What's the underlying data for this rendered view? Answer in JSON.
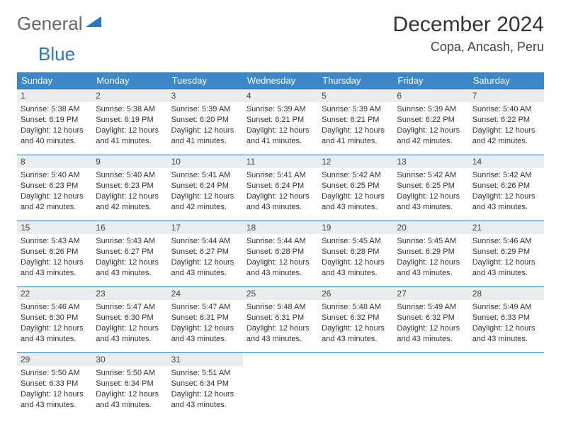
{
  "brand": {
    "general": "General",
    "blue": "Blue"
  },
  "title": "December 2024",
  "location": "Copa, Ancash, Peru",
  "colors": {
    "header_bg": "#3b87c8",
    "header_text": "#ffffff",
    "row_border": "#2b77c0",
    "daynum_bg": "#e9edf0",
    "logo_blue": "#2b77c0",
    "logo_gray": "#686868",
    "body_text": "#333333"
  },
  "weekdays": [
    "Sunday",
    "Monday",
    "Tuesday",
    "Wednesday",
    "Thursday",
    "Friday",
    "Saturday"
  ],
  "weeks": [
    [
      {
        "n": "1",
        "sr": "5:38 AM",
        "ss": "6:19 PM",
        "dl": "12 hours and 40 minutes."
      },
      {
        "n": "2",
        "sr": "5:38 AM",
        "ss": "6:19 PM",
        "dl": "12 hours and 41 minutes."
      },
      {
        "n": "3",
        "sr": "5:39 AM",
        "ss": "6:20 PM",
        "dl": "12 hours and 41 minutes."
      },
      {
        "n": "4",
        "sr": "5:39 AM",
        "ss": "6:21 PM",
        "dl": "12 hours and 41 minutes."
      },
      {
        "n": "5",
        "sr": "5:39 AM",
        "ss": "6:21 PM",
        "dl": "12 hours and 41 minutes."
      },
      {
        "n": "6",
        "sr": "5:39 AM",
        "ss": "6:22 PM",
        "dl": "12 hours and 42 minutes."
      },
      {
        "n": "7",
        "sr": "5:40 AM",
        "ss": "6:22 PM",
        "dl": "12 hours and 42 minutes."
      }
    ],
    [
      {
        "n": "8",
        "sr": "5:40 AM",
        "ss": "6:23 PM",
        "dl": "12 hours and 42 minutes."
      },
      {
        "n": "9",
        "sr": "5:40 AM",
        "ss": "6:23 PM",
        "dl": "12 hours and 42 minutes."
      },
      {
        "n": "10",
        "sr": "5:41 AM",
        "ss": "6:24 PM",
        "dl": "12 hours and 42 minutes."
      },
      {
        "n": "11",
        "sr": "5:41 AM",
        "ss": "6:24 PM",
        "dl": "12 hours and 43 minutes."
      },
      {
        "n": "12",
        "sr": "5:42 AM",
        "ss": "6:25 PM",
        "dl": "12 hours and 43 minutes."
      },
      {
        "n": "13",
        "sr": "5:42 AM",
        "ss": "6:25 PM",
        "dl": "12 hours and 43 minutes."
      },
      {
        "n": "14",
        "sr": "5:42 AM",
        "ss": "6:26 PM",
        "dl": "12 hours and 43 minutes."
      }
    ],
    [
      {
        "n": "15",
        "sr": "5:43 AM",
        "ss": "6:26 PM",
        "dl": "12 hours and 43 minutes."
      },
      {
        "n": "16",
        "sr": "5:43 AM",
        "ss": "6:27 PM",
        "dl": "12 hours and 43 minutes."
      },
      {
        "n": "17",
        "sr": "5:44 AM",
        "ss": "6:27 PM",
        "dl": "12 hours and 43 minutes."
      },
      {
        "n": "18",
        "sr": "5:44 AM",
        "ss": "6:28 PM",
        "dl": "12 hours and 43 minutes."
      },
      {
        "n": "19",
        "sr": "5:45 AM",
        "ss": "6:28 PM",
        "dl": "12 hours and 43 minutes."
      },
      {
        "n": "20",
        "sr": "5:45 AM",
        "ss": "6:29 PM",
        "dl": "12 hours and 43 minutes."
      },
      {
        "n": "21",
        "sr": "5:46 AM",
        "ss": "6:29 PM",
        "dl": "12 hours and 43 minutes."
      }
    ],
    [
      {
        "n": "22",
        "sr": "5:46 AM",
        "ss": "6:30 PM",
        "dl": "12 hours and 43 minutes."
      },
      {
        "n": "23",
        "sr": "5:47 AM",
        "ss": "6:30 PM",
        "dl": "12 hours and 43 minutes."
      },
      {
        "n": "24",
        "sr": "5:47 AM",
        "ss": "6:31 PM",
        "dl": "12 hours and 43 minutes."
      },
      {
        "n": "25",
        "sr": "5:48 AM",
        "ss": "6:31 PM",
        "dl": "12 hours and 43 minutes."
      },
      {
        "n": "26",
        "sr": "5:48 AM",
        "ss": "6:32 PM",
        "dl": "12 hours and 43 minutes."
      },
      {
        "n": "27",
        "sr": "5:49 AM",
        "ss": "6:32 PM",
        "dl": "12 hours and 43 minutes."
      },
      {
        "n": "28",
        "sr": "5:49 AM",
        "ss": "6:33 PM",
        "dl": "12 hours and 43 minutes."
      }
    ],
    [
      {
        "n": "29",
        "sr": "5:50 AM",
        "ss": "6:33 PM",
        "dl": "12 hours and 43 minutes."
      },
      {
        "n": "30",
        "sr": "5:50 AM",
        "ss": "6:34 PM",
        "dl": "12 hours and 43 minutes."
      },
      {
        "n": "31",
        "sr": "5:51 AM",
        "ss": "6:34 PM",
        "dl": "12 hours and 43 minutes."
      },
      null,
      null,
      null,
      null
    ]
  ],
  "labels": {
    "sunrise": "Sunrise:",
    "sunset": "Sunset:",
    "daylight": "Daylight:"
  }
}
